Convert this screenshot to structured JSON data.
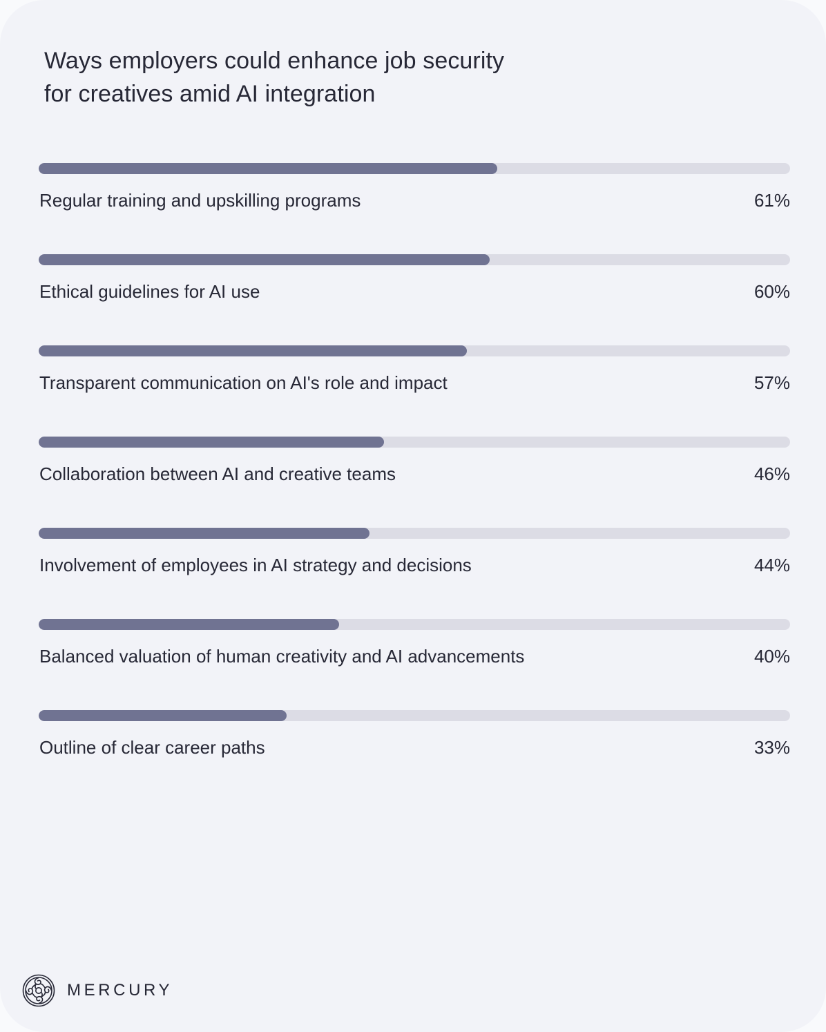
{
  "title": {
    "line1": "Ways employers could enhance job security",
    "line2": "for creatives amid AI integration"
  },
  "colors": {
    "background": "#f2f3f8",
    "bar_fill": "#707392",
    "bar_track": "#dcdce5",
    "text": "#272836"
  },
  "items": [
    {
      "label": "Regular training and upskilling programs",
      "value": "61%",
      "pct": 61
    },
    {
      "label": "Ethical guidelines for AI use",
      "value": "60%",
      "pct": 60
    },
    {
      "label": "Transparent communication on AI's role and impact",
      "value": "57%",
      "pct": 57
    },
    {
      "label": "Collaboration between AI and creative teams",
      "value": "46%",
      "pct": 46
    },
    {
      "label": "Involvement of employees in AI strategy and decisions",
      "value": "44%",
      "pct": 44
    },
    {
      "label": "Balanced valuation of human creativity and AI advancements",
      "value": "40%",
      "pct": 40
    },
    {
      "label": "Outline of clear career paths",
      "value": "33%",
      "pct": 33
    }
  ],
  "brand": {
    "name": "MERCURY",
    "logo_icon": "mercury-knot-logo-icon"
  },
  "chart_data": {
    "type": "bar",
    "orientation": "horizontal",
    "title": "Ways employers could enhance job security for creatives amid AI integration",
    "categories": [
      "Regular training and upskilling programs",
      "Ethical guidelines for AI use",
      "Transparent communication on AI's role and impact",
      "Collaboration between AI and creative teams",
      "Involvement of employees in AI strategy and decisions",
      "Balanced valuation of human creativity and AI advancements",
      "Outline of clear career paths"
    ],
    "values": [
      61,
      60,
      57,
      46,
      44,
      40,
      33
    ],
    "unit": "%",
    "xlabel": "",
    "ylabel": "",
    "xlim": [
      0,
      100
    ],
    "grid": false,
    "legend": null,
    "data_labels": true
  }
}
